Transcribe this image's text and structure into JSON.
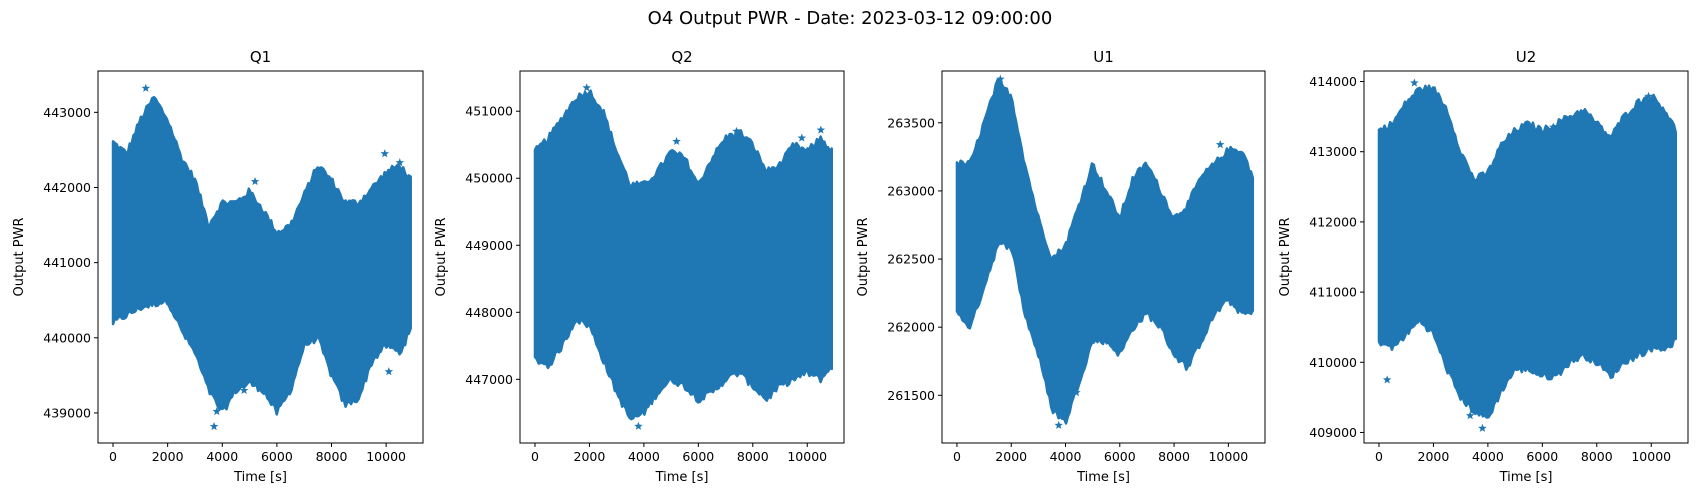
{
  "figure": {
    "title": "O4 Output PWR - Date: 2023-03-12 09:00:00"
  },
  "chart_data": [
    {
      "type": "scatter",
      "title": "Q1",
      "xlabel": "Time [s]",
      "ylabel": "Output PWR",
      "marker": "star",
      "color": "#1f77b4",
      "xlim": [
        -550,
        11350
      ],
      "ylim": [
        438600,
        443550
      ],
      "xticks": [
        0,
        2000,
        4000,
        6000,
        8000,
        10000
      ],
      "yticks": [
        439000,
        440000,
        441000,
        442000,
        443000
      ],
      "xtick_labels": [
        "0",
        "2000",
        "4000",
        "6000",
        "8000",
        "10000"
      ],
      "ytick_labels": [
        "439000",
        "440000",
        "441000",
        "442000",
        "443000"
      ],
      "envelope": {
        "x": [
          0,
          500,
          1000,
          1500,
          2000,
          2500,
          3000,
          3500,
          4000,
          4500,
          5000,
          5500,
          6000,
          6500,
          7000,
          7500,
          8000,
          8500,
          9000,
          9500,
          10000,
          10500,
          10900
        ],
        "upper": [
          442600,
          442450,
          442900,
          443200,
          442900,
          442400,
          442100,
          441500,
          441800,
          441800,
          441950,
          441700,
          441400,
          441500,
          441900,
          442300,
          442100,
          441800,
          441800,
          442000,
          442200,
          442300,
          442100
        ],
        "lower": [
          440200,
          440300,
          440400,
          440450,
          440500,
          440100,
          439800,
          439300,
          439000,
          439300,
          439400,
          439300,
          439000,
          439300,
          439900,
          440000,
          439500,
          439100,
          439200,
          439700,
          439900,
          439800,
          440100
        ]
      },
      "outliers": [
        {
          "x": 1200,
          "y": 443320
        },
        {
          "x": 3700,
          "y": 438820
        },
        {
          "x": 3800,
          "y": 439020
        },
        {
          "x": 5200,
          "y": 442080
        },
        {
          "x": 9950,
          "y": 442450
        },
        {
          "x": 10500,
          "y": 442330
        },
        {
          "x": 10100,
          "y": 439550
        },
        {
          "x": 4800,
          "y": 439300
        }
      ]
    },
    {
      "type": "scatter",
      "title": "Q2",
      "xlabel": "Time [s]",
      "ylabel": "Output PWR",
      "marker": "star",
      "color": "#1f77b4",
      "xlim": [
        -550,
        11350
      ],
      "ylim": [
        446050,
        451600
      ],
      "xticks": [
        0,
        2000,
        4000,
        6000,
        8000,
        10000
      ],
      "yticks": [
        447000,
        448000,
        449000,
        450000,
        451000
      ],
      "xtick_labels": [
        "0",
        "2000",
        "4000",
        "6000",
        "8000",
        "10000"
      ],
      "ytick_labels": [
        "447000",
        "448000",
        "449000",
        "450000",
        "451000"
      ],
      "envelope": {
        "x": [
          0,
          500,
          1000,
          1500,
          2000,
          2500,
          3000,
          3500,
          4000,
          4500,
          5000,
          5500,
          6000,
          6500,
          7000,
          7500,
          8000,
          8500,
          9000,
          9500,
          10000,
          10500,
          10900
        ],
        "upper": [
          450400,
          450600,
          450900,
          451200,
          451300,
          451000,
          450400,
          449900,
          449900,
          450100,
          450400,
          450300,
          449900,
          450300,
          450600,
          450700,
          450500,
          450100,
          450200,
          450500,
          450400,
          450600,
          450400
        ],
        "lower": [
          447300,
          447200,
          447500,
          447900,
          447800,
          447300,
          446800,
          446400,
          446500,
          446800,
          447000,
          446900,
          446700,
          446800,
          447000,
          447100,
          446900,
          446700,
          446900,
          447000,
          447100,
          447000,
          447200
        ]
      },
      "outliers": [
        {
          "x": 1900,
          "y": 451350
        },
        {
          "x": 5200,
          "y": 450550
        },
        {
          "x": 9800,
          "y": 450600
        },
        {
          "x": 10500,
          "y": 450720
        },
        {
          "x": 7400,
          "y": 450700
        },
        {
          "x": 3800,
          "y": 446300
        }
      ]
    },
    {
      "type": "scatter",
      "title": "U1",
      "xlabel": "Time [s]",
      "ylabel": "Output PWR",
      "marker": "star",
      "color": "#1f77b4",
      "xlim": [
        -550,
        11350
      ],
      "ylim": [
        261150,
        263880
      ],
      "xticks": [
        0,
        2000,
        4000,
        6000,
        8000,
        10000
      ],
      "yticks": [
        261500,
        262000,
        262500,
        263000,
        263500
      ],
      "xtick_labels": [
        "0",
        "2000",
        "4000",
        "6000",
        "8000",
        "10000"
      ],
      "ytick_labels": [
        "261500",
        "262000",
        "262500",
        "263000",
        "263500"
      ],
      "envelope": {
        "x": [
          0,
          500,
          1000,
          1500,
          2000,
          2500,
          3000,
          3500,
          4000,
          4500,
          5000,
          5500,
          6000,
          6500,
          7000,
          7500,
          8000,
          8500,
          9000,
          9500,
          10000,
          10500,
          10900
        ],
        "upper": [
          263200,
          263200,
          263500,
          263800,
          263700,
          263200,
          262800,
          262500,
          262600,
          262900,
          263200,
          263000,
          262800,
          263100,
          263200,
          263000,
          262800,
          262900,
          263100,
          263200,
          263300,
          263300,
          263100
        ],
        "lower": [
          262100,
          262000,
          262300,
          262600,
          262600,
          262100,
          261800,
          261400,
          261300,
          261600,
          261900,
          261900,
          261800,
          262000,
          262100,
          262000,
          261800,
          261700,
          261900,
          262100,
          262200,
          262100,
          262100
        ]
      },
      "outliers": [
        {
          "x": 1600,
          "y": 263820
        },
        {
          "x": 3750,
          "y": 261280
        },
        {
          "x": 4400,
          "y": 261520
        },
        {
          "x": 6800,
          "y": 263130
        },
        {
          "x": 9700,
          "y": 263340
        }
      ]
    },
    {
      "type": "scatter",
      "title": "U2",
      "xlabel": "Time [s]",
      "ylabel": "Output PWR",
      "marker": "star",
      "color": "#1f77b4",
      "xlim": [
        -550,
        11350
      ],
      "ylim": [
        408850,
        414150
      ],
      "xticks": [
        0,
        2000,
        4000,
        6000,
        8000,
        10000
      ],
      "yticks": [
        409000,
        410000,
        411000,
        412000,
        413000,
        414000
      ],
      "xtick_labels": [
        "0",
        "2000",
        "4000",
        "6000",
        "8000",
        "10000"
      ],
      "ytick_labels": [
        "409000",
        "410000",
        "411000",
        "412000",
        "413000",
        "414000"
      ],
      "envelope": {
        "x": [
          0,
          500,
          1000,
          1500,
          2000,
          2500,
          3000,
          3500,
          4000,
          4500,
          5000,
          5500,
          6000,
          6500,
          7000,
          7500,
          8000,
          8500,
          9000,
          9500,
          10000,
          10500,
          10900
        ],
        "upper": [
          413300,
          413400,
          413700,
          413900,
          413900,
          413600,
          413000,
          412600,
          412700,
          413100,
          413300,
          413400,
          413300,
          413400,
          413500,
          413600,
          413400,
          413200,
          413500,
          413700,
          413800,
          413600,
          413300
        ],
        "lower": [
          410300,
          410200,
          410400,
          410600,
          410400,
          409900,
          409500,
          409300,
          409200,
          409600,
          409900,
          409900,
          409800,
          409800,
          410000,
          410100,
          410000,
          409800,
          410000,
          410100,
          410200,
          410200,
          410300
        ]
      },
      "outliers": [
        {
          "x": 1300,
          "y": 413980
        },
        {
          "x": 3350,
          "y": 409240
        },
        {
          "x": 3800,
          "y": 409060
        },
        {
          "x": 9900,
          "y": 413790
        },
        {
          "x": 6400,
          "y": 413350
        },
        {
          "x": 300,
          "y": 409750
        }
      ]
    }
  ]
}
